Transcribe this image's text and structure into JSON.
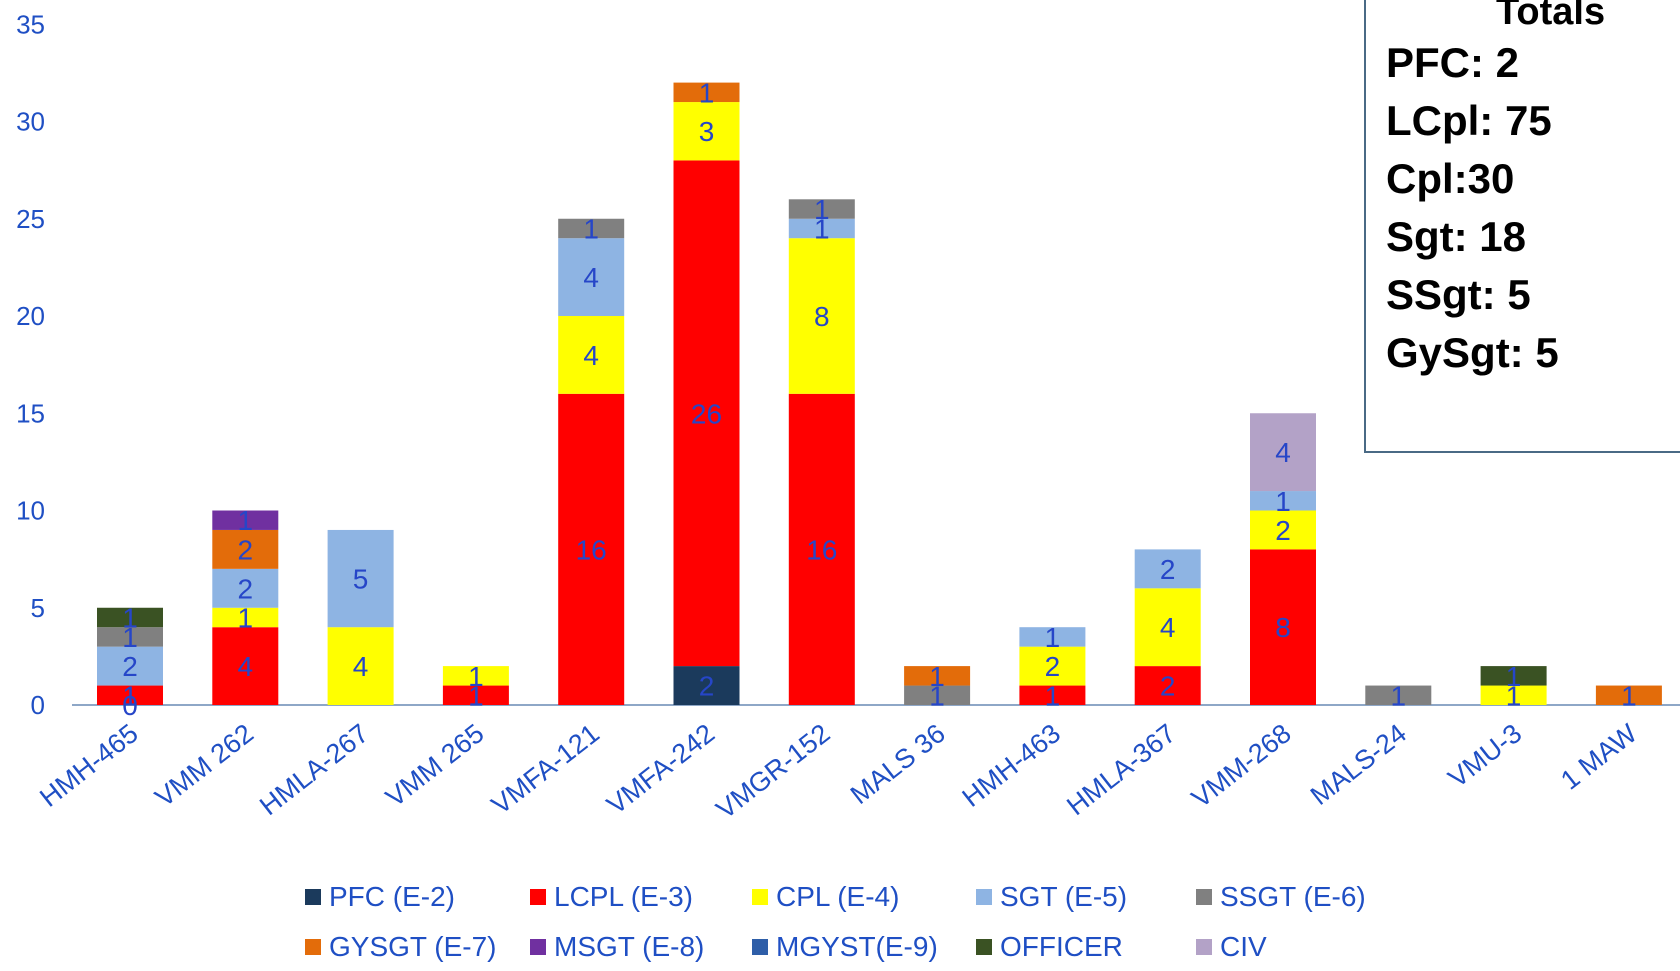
{
  "chart_data": {
    "type": "bar",
    "stacked": true,
    "ylim": [
      0,
      35
    ],
    "yticks": [
      0,
      5,
      10,
      15,
      20,
      25,
      30,
      35
    ],
    "grid": false,
    "legend_position": "bottom",
    "categories": [
      "HMH-465",
      "VMM 262",
      "HMLA-267",
      "VMM 265",
      "VMFA-121",
      "VMFA-242",
      "VMGR-152",
      "MALS 36",
      "HMH-463",
      "HMLA-367",
      "VMM-268",
      "MALS-24",
      "VMU-3",
      "1 MAW"
    ],
    "series": [
      {
        "name": "PFC (E-2)",
        "color": "#1b3a5c",
        "values": [
          0,
          0,
          0,
          0,
          0,
          2,
          0,
          0,
          0,
          0,
          0,
          0,
          0,
          0
        ],
        "labels": [
          "0",
          "",
          "",
          "",
          "",
          "2",
          "",
          "",
          "",
          "",
          "",
          "",
          "",
          ""
        ]
      },
      {
        "name": "LCPL (E-3)",
        "color": "#ff0000",
        "values": [
          1,
          4,
          0,
          1,
          16,
          26,
          16,
          0,
          1,
          2,
          8,
          0,
          0,
          0
        ],
        "labels": [
          "1",
          "4",
          "",
          "1",
          "16",
          "26",
          "16",
          "",
          "1",
          "2",
          "8",
          "",
          "",
          ""
        ]
      },
      {
        "name": "CPL (E-4)",
        "color": "#ffff00",
        "values": [
          0,
          1,
          4,
          1,
          4,
          3,
          8,
          0,
          2,
          4,
          2,
          0,
          1,
          0
        ],
        "labels": [
          "",
          "1",
          "4",
          "1",
          "4",
          "3",
          "8",
          "",
          "2",
          "4",
          "2",
          "",
          "1",
          ""
        ]
      },
      {
        "name": "SGT (E-5)",
        "color": "#8eb4e3",
        "values": [
          2,
          2,
          5,
          0,
          4,
          0,
          1,
          0,
          1,
          2,
          1,
          0,
          0,
          0
        ],
        "labels": [
          "2",
          "2",
          "5",
          "",
          "4",
          "",
          "1",
          "",
          "1",
          "2",
          "1",
          "",
          "",
          ""
        ]
      },
      {
        "name": "SSGT (E-6)",
        "color": "#808080",
        "values": [
          1,
          0,
          0,
          0,
          1,
          0,
          1,
          1,
          0,
          0,
          0,
          1,
          0,
          0
        ],
        "labels": [
          "1",
          "",
          "",
          "",
          "1",
          "",
          "1",
          "1",
          "",
          "",
          "",
          "1",
          "",
          ""
        ]
      },
      {
        "name": "GYSGT (E-7)",
        "color": "#e36c0a",
        "values": [
          0,
          2,
          0,
          0,
          0,
          1,
          0,
          1,
          0,
          0,
          0,
          0,
          0,
          1
        ],
        "labels": [
          "",
          "2",
          "",
          "",
          "",
          "1",
          "",
          "1",
          "",
          "",
          "",
          "",
          "",
          "1"
        ]
      },
      {
        "name": "MSGT (E-8)",
        "color": "#7030a0",
        "values": [
          0,
          1,
          0,
          0,
          0,
          0,
          0,
          0,
          0,
          0,
          0,
          0,
          0,
          0
        ],
        "labels": [
          "",
          "1",
          "",
          "",
          "",
          "",
          "",
          "",
          "",
          "",
          "",
          "",
          "",
          ""
        ]
      },
      {
        "name": "MGYST(E-9)",
        "color": "#2e5ea8",
        "values": [
          0,
          0,
          0,
          0,
          0,
          0,
          0,
          0,
          0,
          0,
          0,
          0,
          0,
          0
        ],
        "labels": [
          "",
          "",
          "",
          "",
          "",
          "",
          "",
          "",
          "",
          "",
          "",
          "",
          "",
          ""
        ]
      },
      {
        "name": "OFFICER",
        "color": "#3a5223",
        "values": [
          1,
          0,
          0,
          0,
          0,
          0,
          0,
          0,
          0,
          0,
          0,
          0,
          1,
          0
        ],
        "labels": [
          "1",
          "",
          "",
          "",
          "",
          "",
          "",
          "",
          "",
          "",
          "",
          "",
          "1",
          ""
        ]
      },
      {
        "name": "CIV",
        "color": "#b3a2c7",
        "values": [
          0,
          0,
          0,
          0,
          0,
          0,
          0,
          0,
          0,
          0,
          4,
          0,
          0,
          0
        ],
        "labels": [
          "",
          "",
          "",
          "",
          "",
          "",
          "",
          "",
          "",
          "",
          "4",
          "",
          "",
          ""
        ]
      }
    ]
  },
  "totals_box": {
    "title": "Totals",
    "lines": [
      "PFC: 2",
      "LCpl: 75",
      "Cpl:30",
      "Sgt: 18",
      "SSgt: 5",
      "GySgt: 5"
    ]
  }
}
